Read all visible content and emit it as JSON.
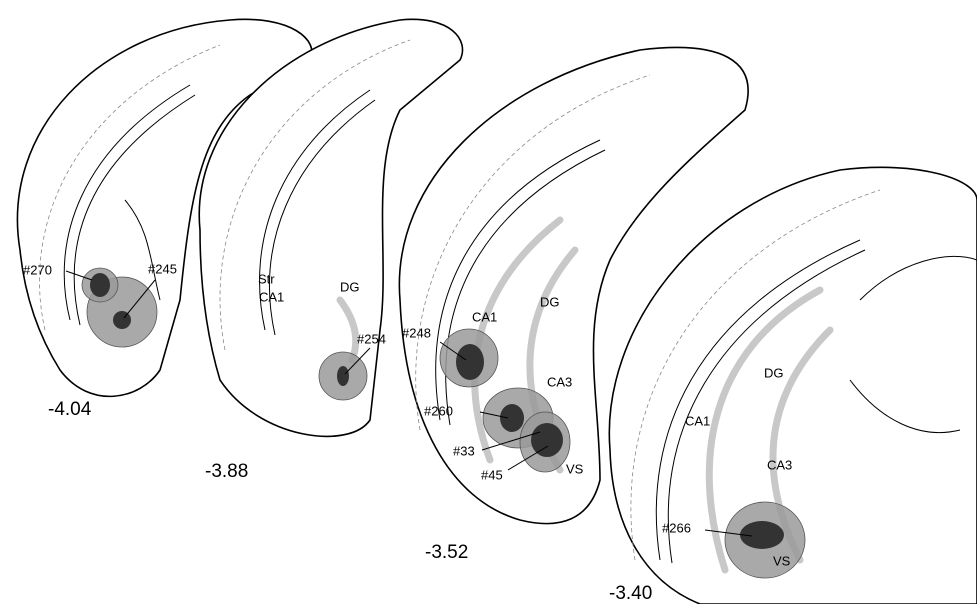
{
  "sections": [
    {
      "coordinate": "-4.04",
      "lesions": [
        "#270",
        "#245"
      ]
    },
    {
      "coordinate": "-3.88",
      "regions": [
        "Str",
        "CA1",
        "DG"
      ],
      "lesions": [
        "#254"
      ]
    },
    {
      "coordinate": "-3.52",
      "regions": [
        "CA1",
        "DG",
        "CA3",
        "VS"
      ],
      "lesions": [
        "#248",
        "#260",
        "#33",
        "#45"
      ]
    },
    {
      "coordinate": "-3.40",
      "regions": [
        "DG",
        "CA1",
        "CA3",
        "VS"
      ],
      "lesions": [
        "#266"
      ]
    }
  ]
}
